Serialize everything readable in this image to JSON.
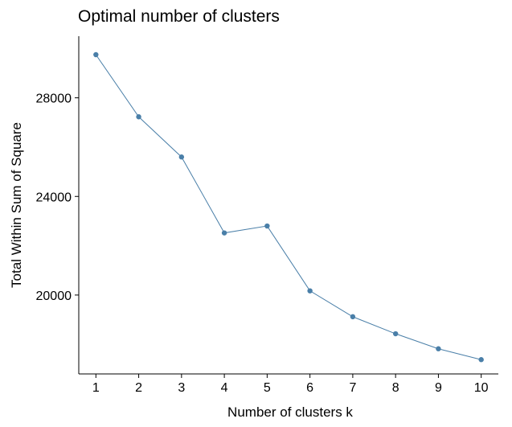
{
  "chart_data": {
    "type": "line",
    "title": "Optimal number of clusters",
    "xlabel": "Number of clusters k",
    "ylabel": "Total Within Sum of Square",
    "x": [
      1,
      2,
      3,
      4,
      5,
      6,
      7,
      8,
      9,
      10
    ],
    "x_tick_labels": [
      "1",
      "2",
      "3",
      "4",
      "5",
      "6",
      "7",
      "8",
      "9",
      "10"
    ],
    "y_ticks": [
      20000,
      24000,
      28000
    ],
    "y_tick_labels": [
      "20000",
      "24000",
      "28000"
    ],
    "series": [
      {
        "values": [
          29750,
          27230,
          25600,
          22520,
          22800,
          20170,
          19120,
          18430,
          17820,
          17380
        ]
      }
    ],
    "xlim": [
      0.6,
      10.4
    ],
    "ylim": [
      16800,
      30500
    ],
    "grid": false,
    "legend": "none",
    "colors": {
      "line": "#4a7fa8",
      "point": "#4a7fa8",
      "axis": "#000000"
    }
  }
}
